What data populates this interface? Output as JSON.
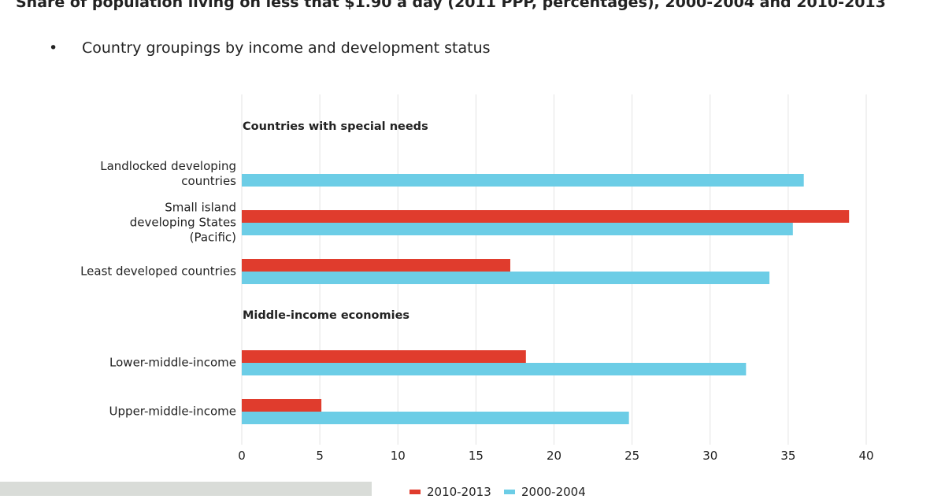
{
  "chart_data": {
    "type": "hbar",
    "title": "Share of population living on less that $1.90 a day (2011 PPP, percentages), 2000-2004 and 2010-2013",
    "subtitle": "Country groupings by income and development status",
    "groups": [
      {
        "name": "Countries with special needs",
        "categories": [
          "Landlocked developing countries",
          "Small island developing States (Pacific)",
          "Least developed countries"
        ]
      },
      {
        "name": "Middle-income economies",
        "categories": [
          "Lower-middle-income",
          "Upper-middle-income"
        ]
      }
    ],
    "series": [
      {
        "name": "2010-2013",
        "color": "#e03c2d",
        "values": [
          null,
          38.9,
          17.2,
          18.2,
          5.1
        ]
      },
      {
        "name": "2000-2004",
        "color": "#6ccde6",
        "values": [
          36.0,
          35.3,
          33.8,
          32.3,
          24.8
        ]
      }
    ],
    "xlim": [
      0,
      40
    ],
    "xticks": [
      0,
      5,
      10,
      15,
      20,
      25,
      30,
      35,
      40
    ],
    "grid": true
  }
}
